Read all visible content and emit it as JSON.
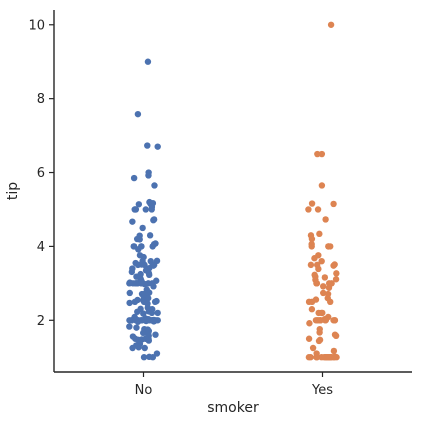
{
  "chart_data": {
    "type": "scatter",
    "kind": "strip plot (jittered categorical scatter)",
    "xlabel": "smoker",
    "ylabel": "tip",
    "categories": [
      "No",
      "Yes"
    ],
    "ylim": [
      0.6,
      10.4
    ],
    "yticks": [
      2,
      4,
      6,
      8,
      10
    ],
    "grid": false,
    "legend": "none",
    "series": [
      {
        "color": "#4c72b0",
        "category": "No",
        "values": [
          9.0,
          7.58,
          6.73,
          6.7,
          6.0,
          5.92,
          5.85,
          5.65,
          5.2,
          5.17,
          5.16,
          5.14,
          5.07,
          5.0,
          5.0,
          5.0,
          5.0,
          5.0,
          4.73,
          4.71,
          4.67,
          4.5,
          4.3,
          4.29,
          4.2,
          4.19,
          4.08,
          4.06,
          4.0,
          4.0,
          4.0,
          4.0,
          4.0,
          3.92,
          3.76,
          3.71,
          3.61,
          3.6,
          3.6,
          3.55,
          3.51,
          3.5,
          3.5,
          3.5,
          3.5,
          3.48,
          3.41,
          3.4,
          3.35,
          3.31,
          3.27,
          3.25,
          3.23,
          3.18,
          3.15,
          3.12,
          3.08,
          3.07,
          3.06,
          3.02,
          3.0,
          3.0,
          3.0,
          3.0,
          3.0,
          3.0,
          3.0,
          3.0,
          3.0,
          3.0,
          2.98,
          2.92,
          2.83,
          2.75,
          2.74,
          2.72,
          2.71,
          2.64,
          2.6,
          2.55,
          2.54,
          2.52,
          2.5,
          2.5,
          2.5,
          2.5,
          2.47,
          2.45,
          2.34,
          2.31,
          2.3,
          2.24,
          2.23,
          2.2,
          2.2,
          2.18,
          2.09,
          2.05,
          2.03,
          2.01,
          2.0,
          2.0,
          2.0,
          2.0,
          2.0,
          2.0,
          2.0,
          2.0,
          2.0,
          2.0,
          2.0,
          2.0,
          2.0,
          2.0,
          2.0,
          2.0,
          2.0,
          2.0,
          2.0,
          2.0,
          1.98,
          1.97,
          1.96,
          1.83,
          1.8,
          1.76,
          1.75,
          1.71,
          1.68,
          1.66,
          1.64,
          1.61,
          1.58,
          1.56,
          1.5,
          1.5,
          1.5,
          1.48,
          1.47,
          1.45,
          1.44,
          1.36,
          1.32,
          1.27,
          1.25,
          1.25,
          1.1,
          1.01,
          1.0,
          1.0
        ]
      },
      {
        "color": "#dd8452",
        "category": "Yes",
        "values": [
          10.0,
          6.5,
          6.5,
          5.65,
          5.16,
          5.15,
          5.0,
          5.0,
          4.73,
          4.34,
          4.3,
          4.2,
          4.06,
          4.0,
          4.0,
          4.0,
          4.0,
          3.76,
          3.68,
          3.6,
          3.51,
          3.5,
          3.5,
          3.48,
          3.39,
          3.27,
          3.23,
          3.18,
          3.16,
          3.11,
          3.09,
          3.0,
          3.0,
          3.0,
          3.0,
          2.92,
          2.88,
          2.74,
          2.71,
          2.6,
          2.56,
          2.5,
          2.5,
          2.5,
          2.3,
          2.2,
          2.2,
          2.2,
          2.09,
          2.03,
          2.03,
          2.0,
          2.0,
          2.0,
          2.0,
          2.0,
          2.0,
          2.0,
          2.0,
          2.0,
          2.0,
          2.0,
          1.92,
          1.76,
          1.67,
          1.61,
          1.58,
          1.5,
          1.47,
          1.44,
          1.25,
          1.17,
          1.1,
          1.01,
          1.0,
          1.0,
          1.0,
          1.0,
          1.0,
          1.0,
          1.0,
          1.0,
          1.0,
          1.0,
          1.0,
          1.0,
          1.0,
          1.0,
          1.0,
          1.0,
          1.0,
          1.0,
          1.0
        ]
      }
    ]
  }
}
